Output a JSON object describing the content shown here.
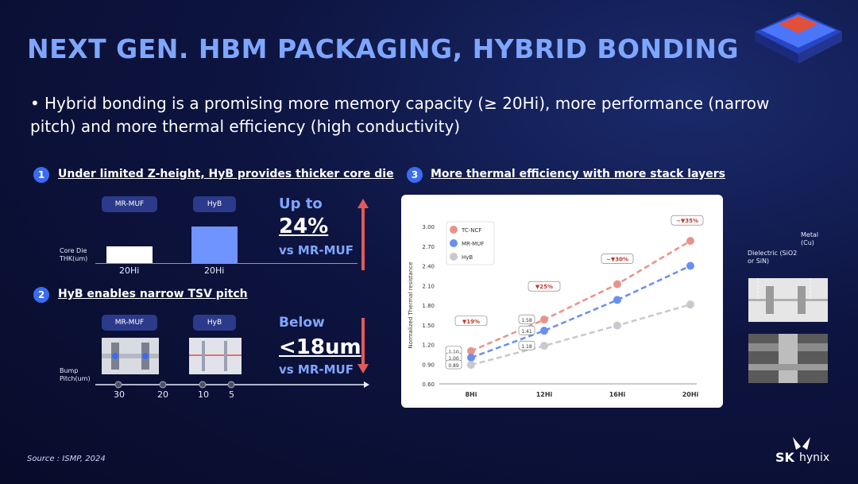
{
  "title": "NEXT GEN. HBM PACKAGING, HYBRID BONDING",
  "bullet": "Hybrid bonding is a promising more memory capacity (≥ 20Hi), more performance (narrow pitch) and more thermal efficiency (high conductivity)",
  "section1": {
    "num": "1",
    "heading": "Under limited Z-height, HyB provides thicker core die",
    "pill_a": "MR-MUF",
    "pill_b": "HyB",
    "axis_label": "Core Die THK(um)",
    "bar_a_label": "20Hi",
    "bar_b_label": "20Hi",
    "stat_line1": "Up to",
    "stat_line2": "24%",
    "stat_line3": "vs MR-MUF"
  },
  "section2": {
    "num": "2",
    "heading": "HyB enables narrow TSV pitch",
    "pill_a": "MR-MUF",
    "pill_b": "HyB",
    "axis_label": "Bump Pitch(um)",
    "ticks": [
      "30",
      "20",
      "10",
      "5"
    ],
    "stat_line1": "Below",
    "stat_line2": "<18um",
    "stat_line3": "vs MR-MUF"
  },
  "section3": {
    "num": "3",
    "heading": "More thermal efficiency with more stack layers"
  },
  "chart_data": {
    "type": "line",
    "categories": [
      "8Hi",
      "12Hi",
      "16Hi",
      "20Hi"
    ],
    "ylabel": "Normalized Thermal resistance",
    "ylim": [
      0.6,
      3.0
    ],
    "yticks": [
      "0.60",
      "0.90",
      "1.20",
      "1.50",
      "1.80",
      "2.10",
      "2.40",
      "2.70",
      "3.00"
    ],
    "series": [
      {
        "name": "TC-NCF",
        "color": "#e8938a",
        "values": [
          1.1,
          1.58,
          2.12,
          2.78
        ]
      },
      {
        "name": "MR-MUF",
        "color": "#6b8ff0",
        "values": [
          1.0,
          1.41,
          1.88,
          2.4
        ]
      },
      {
        "name": "HyB",
        "color": "#c8c8d0",
        "values": [
          0.89,
          1.18,
          1.49,
          1.81
        ]
      }
    ],
    "point_labels": [
      "1.10",
      "1.00",
      "0.89",
      "1.58",
      "1.41",
      "1.18"
    ],
    "annotations": [
      "▼19%",
      "▼25%",
      "~▼30%",
      "~▼35%"
    ]
  },
  "side": {
    "dielectric": "Dielectric (SiO2 or SiN)",
    "metal": "Metal (Cu)"
  },
  "source": "Source : ISMP, 2024",
  "logo": {
    "sk": "SK",
    "hynix": "hynix"
  }
}
